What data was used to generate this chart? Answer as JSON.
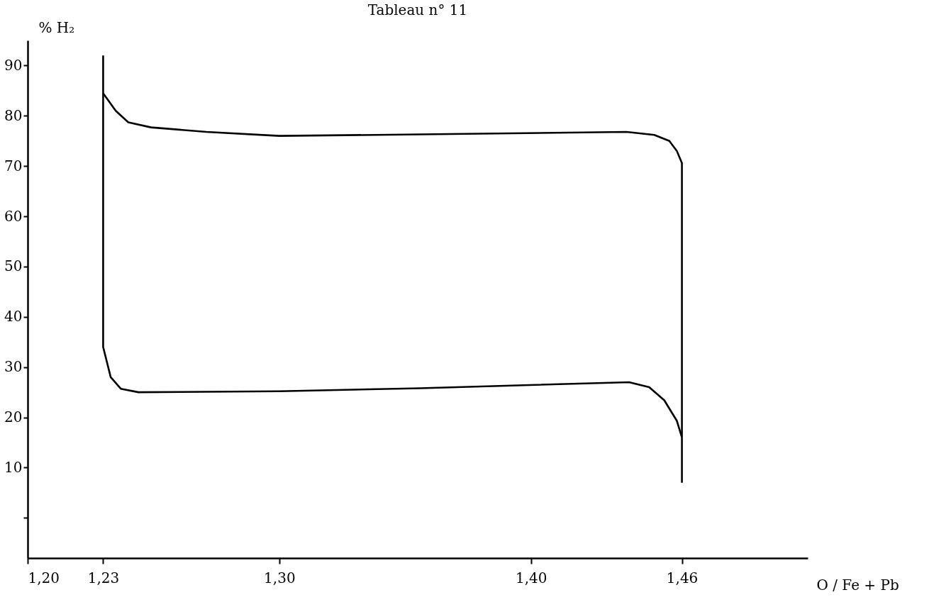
{
  "chart_data": {
    "type": "line",
    "title": "Tableau n° 11",
    "xlabel": "O / Fe + Pb",
    "ylabel": "% H₂",
    "xlim": [
      1.2,
      1.51
    ],
    "ylim": [
      -8,
      95
    ],
    "xticks": [
      {
        "value": 1.2,
        "label": "1,20"
      },
      {
        "value": 1.23,
        "label": "1,23"
      },
      {
        "value": 1.3,
        "label": "1,30"
      },
      {
        "value": 1.4,
        "label": "1,40"
      },
      {
        "value": 1.46,
        "label": "1,46"
      }
    ],
    "yticks": [
      {
        "value": 0,
        "label": null
      },
      10,
      20,
      30,
      40,
      50,
      60,
      70,
      80,
      90
    ],
    "grid": false,
    "legend": false,
    "marker": "none",
    "line_style": "solid",
    "series": [
      {
        "color": "#000000",
        "x": [
          1.23,
          1.23,
          1.23,
          1.233,
          1.237,
          1.244,
          1.3,
          1.356,
          1.439,
          1.447,
          1.453,
          1.458,
          1.46,
          1.46
        ],
        "values": [
          92,
          84.5,
          34,
          28,
          25.7,
          25,
          25.2,
          25.8,
          27,
          26,
          23.4,
          19.3,
          16,
          7
        ]
      },
      {
        "color": "#000000",
        "x": [
          1.23,
          1.235,
          1.24,
          1.249,
          1.271,
          1.3,
          1.356,
          1.438,
          1.449,
          1.455,
          1.458,
          1.46,
          1.46
        ],
        "values": [
          84.5,
          81,
          78.7,
          77.7,
          76.8,
          76,
          76.3,
          76.8,
          76.2,
          75,
          73,
          70.6,
          16
        ]
      }
    ]
  }
}
